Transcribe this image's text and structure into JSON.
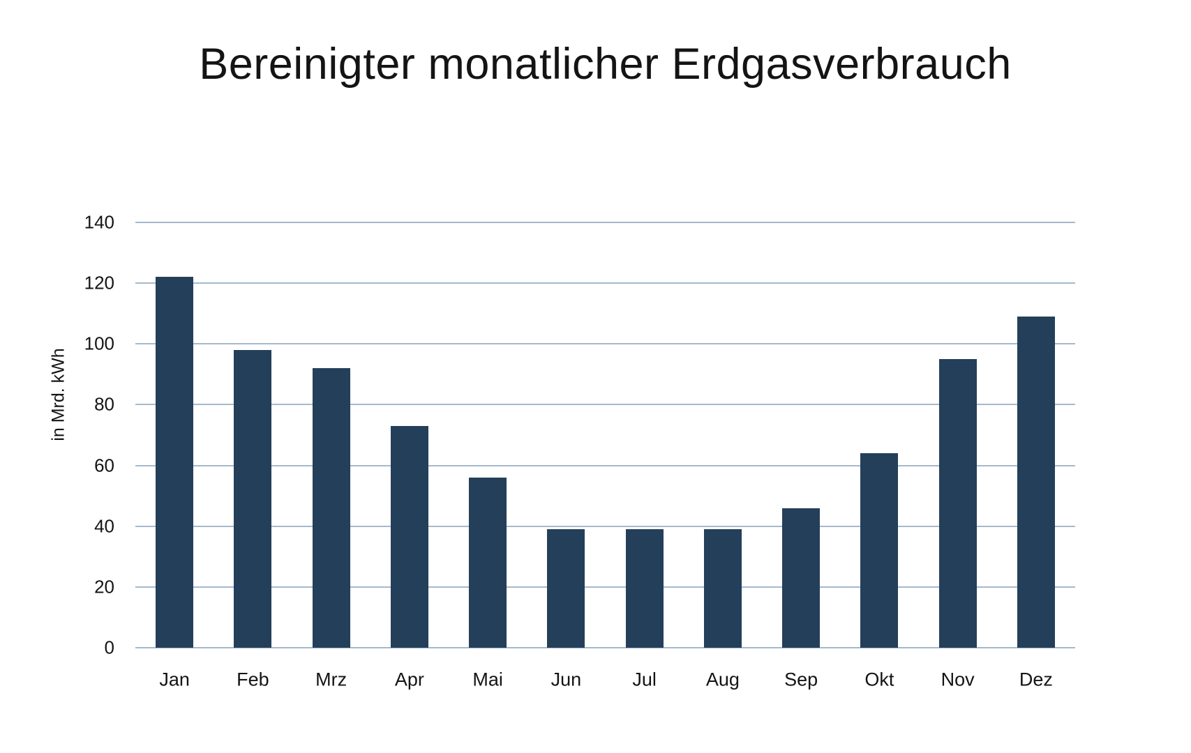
{
  "chart_data": {
    "type": "bar",
    "title": "Bereinigter monatlicher Erdgasverbrauch",
    "ylabel": "in Mrd. kWh",
    "xlabel": "",
    "categories": [
      "Jan",
      "Feb",
      "Mrz",
      "Apr",
      "Mai",
      "Jun",
      "Jul",
      "Aug",
      "Sep",
      "Okt",
      "Nov",
      "Dez"
    ],
    "values": [
      122,
      98,
      92,
      73,
      56,
      39,
      39,
      39,
      46,
      64,
      95,
      109
    ],
    "ylim": [
      0,
      140
    ],
    "yticks": [
      0,
      20,
      40,
      60,
      80,
      100,
      120,
      140
    ],
    "grid": "horizontal-only",
    "legend_position": "none",
    "colors": {
      "bar": "#243F5A",
      "gridline": "#A5B9CD",
      "text": "#141414",
      "background": "#FFFFFF"
    }
  }
}
